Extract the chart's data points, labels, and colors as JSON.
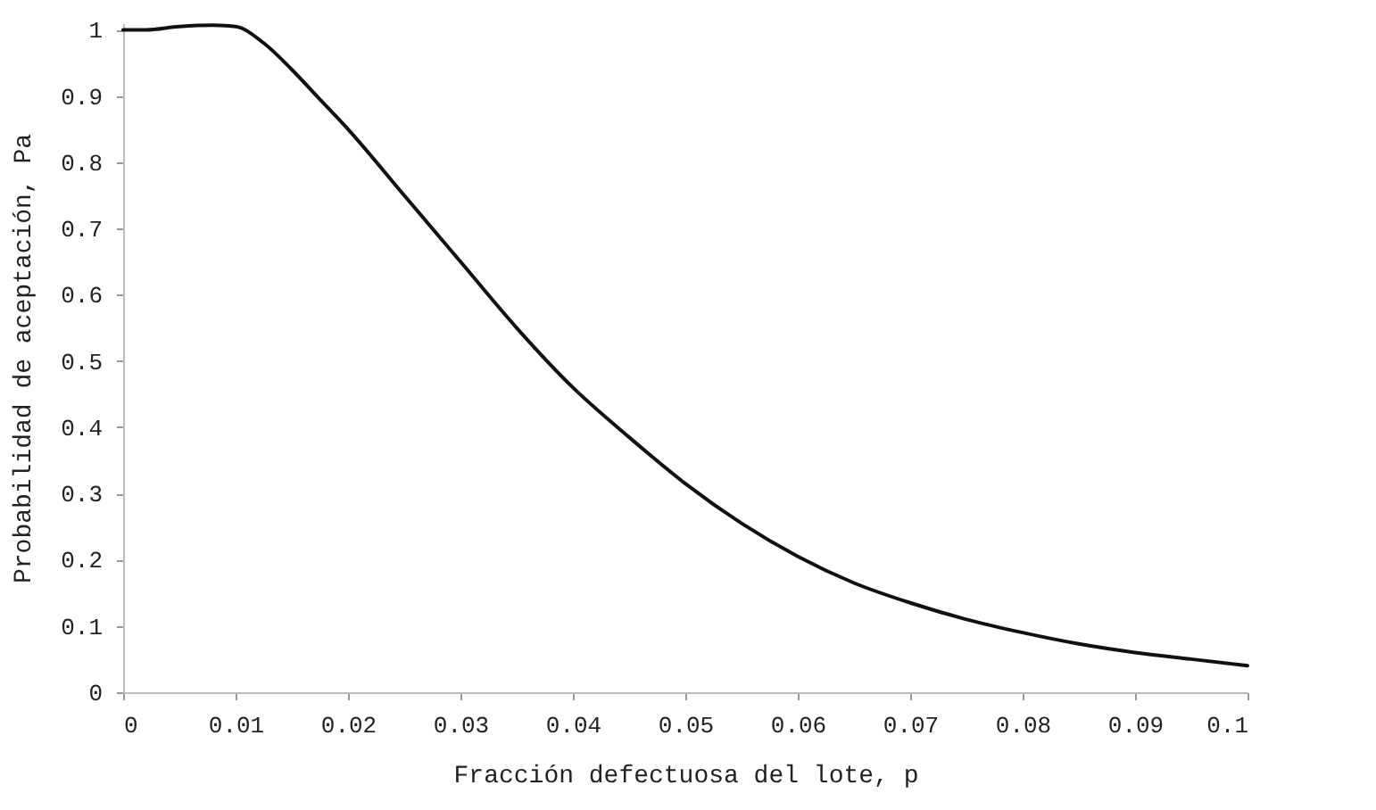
{
  "chart_data": {
    "type": "line",
    "xlabel": "Fracción defectuosa del lote, p",
    "ylabel": "Probabilidad de aceptación, Pa",
    "xlim": [
      0,
      0.1
    ],
    "xticks": [
      0,
      0.01,
      0.02,
      0.03,
      0.04,
      0.05,
      0.06,
      0.07,
      0.08,
      0.09,
      0.1
    ],
    "ylim": [
      0,
      1.01
    ],
    "yticks": [
      0,
      0.1,
      0.2,
      0.3,
      0.4,
      0.5,
      0.6,
      0.7,
      0.8,
      0.9,
      1
    ],
    "grid": false,
    "marker": "none",
    "line_style": "solid",
    "series": [
      {
        "color": "#111111",
        "x": [
          0,
          0.002,
          0.005,
          0.008,
          0.01,
          0.0125,
          0.015,
          0.0175,
          0.02,
          0.025,
          0.03,
          0.035,
          0.04,
          0.045,
          0.05,
          0.055,
          0.06,
          0.065,
          0.07,
          0.075,
          0.08,
          0.085,
          0.09,
          0.095,
          0.1
        ],
        "values": [
          1.0,
          1.0,
          1.005,
          1.007,
          1.005,
          0.98,
          0.94,
          0.895,
          0.85,
          0.75,
          0.65,
          0.55,
          0.46,
          0.385,
          0.315,
          0.255,
          0.205,
          0.165,
          0.135,
          0.11,
          0.09,
          0.073,
          0.06,
          0.05,
          0.04
        ]
      }
    ]
  }
}
